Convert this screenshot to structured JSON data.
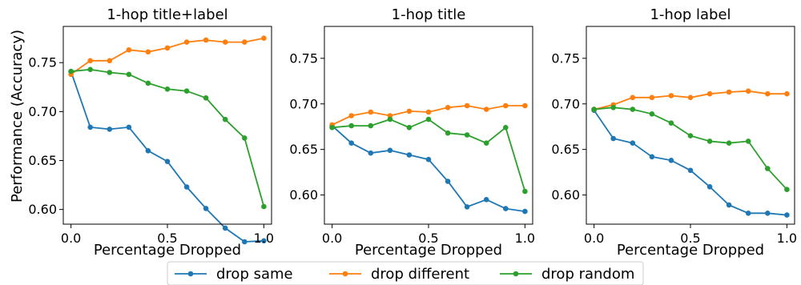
{
  "chart_data": [
    {
      "type": "line",
      "title": "1-hop title+label",
      "xlabel": "Percentage Dropped",
      "ylabel": "Performance (Accuracy)",
      "xlim": [
        -0.04,
        1.04
      ],
      "ylim": [
        0.585,
        0.787
      ],
      "xticks": [
        "0.0",
        "0.5",
        "1.0"
      ],
      "yticks": [
        "0.60",
        "0.65",
        "0.70",
        "0.75"
      ],
      "x": [
        0.0,
        0.1,
        0.2,
        0.3,
        0.4,
        0.5,
        0.6,
        0.7,
        0.8,
        0.9,
        1.0
      ],
      "series": [
        {
          "name": "drop same",
          "color": "#1f77b4",
          "values": [
            0.741,
            0.684,
            0.682,
            0.684,
            0.66,
            0.649,
            0.623,
            0.601,
            0.581,
            0.567,
            0.568
          ]
        },
        {
          "name": "drop different",
          "color": "#ff7f0e",
          "values": [
            0.738,
            0.752,
            0.752,
            0.763,
            0.761,
            0.765,
            0.771,
            0.773,
            0.771,
            0.771,
            0.775
          ]
        },
        {
          "name": "drop random",
          "color": "#2ca02c",
          "values": [
            0.741,
            0.743,
            0.74,
            0.738,
            0.729,
            0.723,
            0.721,
            0.714,
            0.692,
            0.673,
            0.603
          ]
        }
      ]
    },
    {
      "type": "line",
      "title": "1-hop title",
      "xlabel": "Percentage Dropped",
      "ylabel": "",
      "xlim": [
        -0.04,
        1.04
      ],
      "ylim": [
        0.568,
        0.785
      ],
      "xticks": [
        "0.0",
        "0.5",
        "1.0"
      ],
      "yticks": [
        "0.60",
        "0.65",
        "0.70",
        "0.75"
      ],
      "x": [
        0.0,
        0.1,
        0.2,
        0.3,
        0.4,
        0.5,
        0.6,
        0.7,
        0.8,
        0.9,
        1.0
      ],
      "series": [
        {
          "name": "drop same",
          "color": "#1f77b4",
          "values": [
            0.676,
            0.657,
            0.646,
            0.649,
            0.644,
            0.639,
            0.615,
            0.587,
            0.595,
            0.585,
            0.582
          ]
        },
        {
          "name": "drop different",
          "color": "#ff7f0e",
          "values": [
            0.677,
            0.687,
            0.691,
            0.687,
            0.692,
            0.691,
            0.696,
            0.698,
            0.694,
            0.698,
            0.698
          ]
        },
        {
          "name": "drop random",
          "color": "#2ca02c",
          "values": [
            0.674,
            0.676,
            0.676,
            0.683,
            0.674,
            0.683,
            0.668,
            0.666,
            0.657,
            0.674,
            0.604
          ]
        }
      ]
    },
    {
      "type": "line",
      "title": "1-hop label",
      "xlabel": "Percentage Dropped",
      "ylabel": "",
      "xlim": [
        -0.04,
        1.04
      ],
      "ylim": [
        0.568,
        0.785
      ],
      "xticks": [
        "0.0",
        "0.5",
        "1.0"
      ],
      "yticks": [
        "0.60",
        "0.65",
        "0.70",
        "0.75"
      ],
      "x": [
        0.0,
        0.1,
        0.2,
        0.3,
        0.4,
        0.5,
        0.6,
        0.7,
        0.8,
        0.9,
        1.0
      ],
      "series": [
        {
          "name": "drop same",
          "color": "#1f77b4",
          "values": [
            0.693,
            0.662,
            0.657,
            0.642,
            0.638,
            0.627,
            0.609,
            0.589,
            0.58,
            0.58,
            0.578
          ]
        },
        {
          "name": "drop different",
          "color": "#ff7f0e",
          "values": [
            0.694,
            0.699,
            0.707,
            0.707,
            0.709,
            0.707,
            0.711,
            0.713,
            0.714,
            0.711,
            0.711
          ]
        },
        {
          "name": "drop random",
          "color": "#2ca02c",
          "values": [
            0.694,
            0.696,
            0.694,
            0.689,
            0.679,
            0.665,
            0.659,
            0.657,
            0.659,
            0.629,
            0.606
          ]
        }
      ]
    }
  ],
  "legend": {
    "placement": "bottom-center",
    "entries": [
      "drop same",
      "drop different",
      "drop random"
    ]
  }
}
